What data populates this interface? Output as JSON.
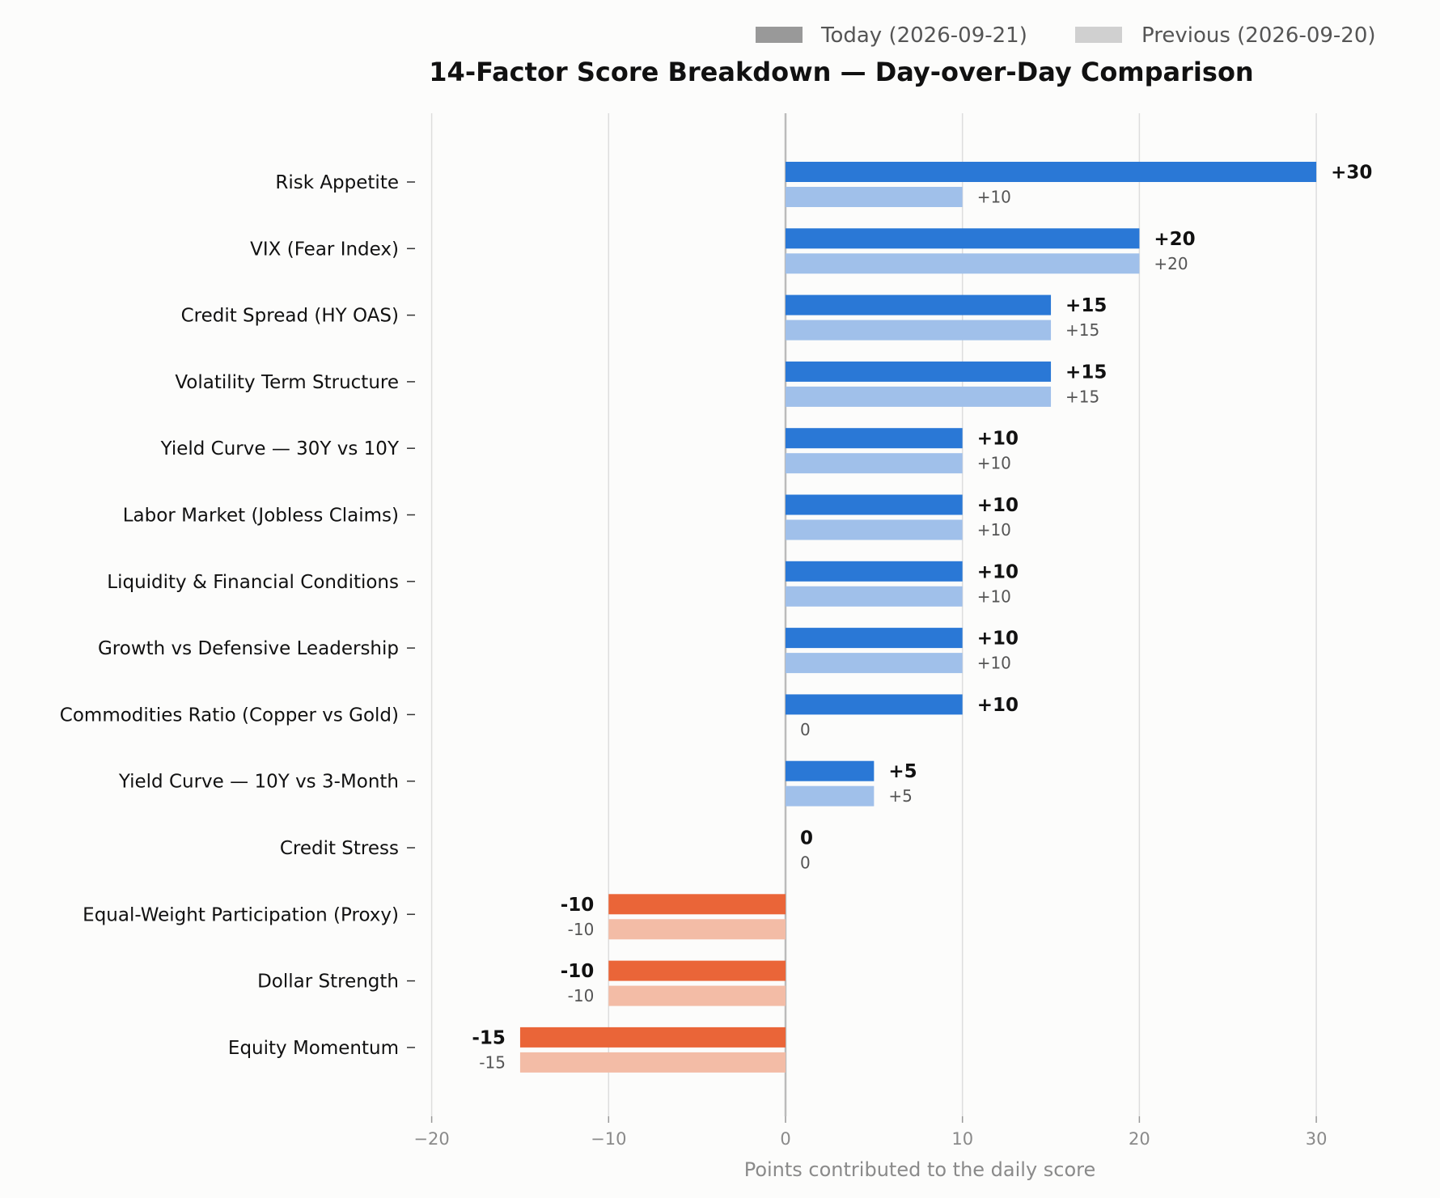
{
  "chart_data": {
    "type": "bar",
    "orientation": "horizontal",
    "title": "14-Factor Score Breakdown — Day-over-Day Comparison",
    "xlabel": "Points contributed to the daily score",
    "ylabel": "",
    "xlim": [
      -22,
      33
    ],
    "xticks": [
      -20,
      -10,
      0,
      10,
      20,
      30
    ],
    "xtick_labels": [
      "−20",
      "−10",
      "0",
      "10",
      "20",
      "30"
    ],
    "grid": "vertical",
    "legend_position": "top-right",
    "colors": {
      "today_positive": "#2a78d6",
      "prev_positive": "#a0c0ea",
      "today_negative": "#ea6538",
      "prev_negative": "#f3bca6",
      "legend_today": "#999999",
      "legend_prev": "#d0d0d0",
      "grid": "#dddddd",
      "zero_line": "#bbbbbb"
    },
    "categories": [
      "Risk Appetite",
      "VIX (Fear Index)",
      "Credit Spread (HY OAS)",
      "Volatility Term Structure",
      "Yield Curve — 30Y vs 10Y",
      "Labor Market (Jobless Claims)",
      "Liquidity & Financial Conditions",
      "Growth vs Defensive Leadership",
      "Commodities Ratio (Copper vs Gold)",
      "Yield Curve — 10Y vs 3-Month",
      "Credit Stress",
      "Equal-Weight Participation (Proxy)",
      "Dollar Strength",
      "Equity Momentum"
    ],
    "series": [
      {
        "name": "Today (2026-09-21)",
        "values": [
          30,
          20,
          15,
          15,
          10,
          10,
          10,
          10,
          10,
          5,
          0,
          -10,
          -10,
          -15
        ],
        "labels": [
          "+30",
          "+20",
          "+15",
          "+15",
          "+10",
          "+10",
          "+10",
          "+10",
          "+10",
          "+5",
          "0",
          "-10",
          "-10",
          "-15"
        ]
      },
      {
        "name": "Previous (2026-09-20)",
        "values": [
          10,
          20,
          15,
          15,
          10,
          10,
          10,
          10,
          0,
          5,
          0,
          -10,
          -10,
          -15
        ],
        "labels": [
          "+10",
          "+20",
          "+15",
          "+15",
          "+10",
          "+10",
          "+10",
          "+10",
          "0",
          "+5",
          "0",
          "-10",
          "-10",
          "-15"
        ]
      }
    ]
  }
}
